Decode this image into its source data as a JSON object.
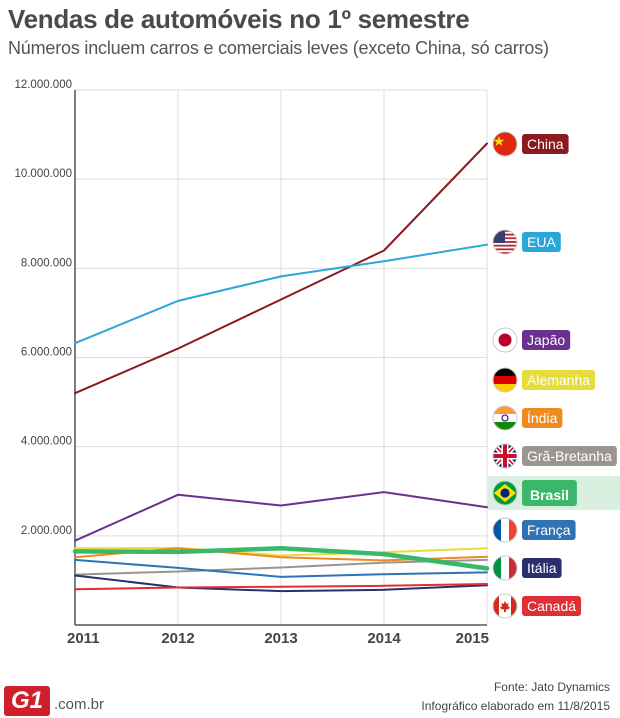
{
  "header": {
    "title": "Vendas de automóveis no 1º semestre",
    "subtitle": "Números incluem carros e comerciais leves (exceto China, só carros)"
  },
  "footer": {
    "source": "Fonte: Jato Dynamics",
    "date": "Infográfico elaborado em 11/8/2015",
    "logo_mark": "G1",
    "logo_domain": ".com.br"
  },
  "chart_data": {
    "type": "line",
    "title": "Vendas de automóveis no 1º semestre",
    "subtitle": "Números incluem carros e comerciais leves (exceto China, só carros)",
    "xlabel": "",
    "ylabel": "",
    "x": [
      "2011",
      "2012",
      "2013",
      "2014",
      "2015"
    ],
    "ylim": [
      0,
      12000000
    ],
    "yticks": [
      2000000,
      4000000,
      6000000,
      8000000,
      10000000,
      12000000
    ],
    "ytick_labels": [
      "2.000.000",
      "4.000.000",
      "6.000.000",
      "8.000.000",
      "10.000.000",
      "12.000.000"
    ],
    "grid": true,
    "legend": "right",
    "series": [
      {
        "name": "China",
        "color": "#8b1a1f",
        "flag": "china",
        "values": [
          5200000,
          6200000,
          7300000,
          8400000,
          10800000
        ]
      },
      {
        "name": "EUA",
        "color": "#2aa7d9",
        "flag": "usa",
        "values": [
          6320000,
          7270000,
          7820000,
          8160000,
          8530000
        ]
      },
      {
        "name": "Japão",
        "color": "#6b2f8f",
        "flag": "japan",
        "values": [
          1890000,
          2920000,
          2680000,
          2980000,
          2640000
        ]
      },
      {
        "name": "Alemanha",
        "color": "#e6dc3a",
        "flag": "germany",
        "values": [
          1720000,
          1730000,
          1560000,
          1630000,
          1720000
        ]
      },
      {
        "name": "Índia",
        "color": "#ef8a1e",
        "flag": "india",
        "values": [
          1520000,
          1720000,
          1520000,
          1450000,
          1530000
        ]
      },
      {
        "name": "Grã-Bretanha",
        "color": "#9a9590",
        "flag": "uk",
        "values": [
          1130000,
          1200000,
          1290000,
          1400000,
          1460000
        ]
      },
      {
        "name": "Brasil",
        "color": "#3bb76a",
        "flag": "brazil",
        "values": [
          1650000,
          1640000,
          1720000,
          1590000,
          1270000
        ]
      },
      {
        "name": "França",
        "color": "#2f73b5",
        "flag": "france",
        "values": [
          1460000,
          1280000,
          1080000,
          1140000,
          1180000
        ]
      },
      {
        "name": "Itália",
        "color": "#2a2f6e",
        "flag": "italy",
        "values": [
          1110000,
          840000,
          760000,
          790000,
          890000
        ]
      },
      {
        "name": "Canadá",
        "color": "#e02e35",
        "flag": "canada",
        "values": [
          800000,
          840000,
          860000,
          880000,
          920000
        ]
      }
    ],
    "highlight": "Brasil"
  }
}
